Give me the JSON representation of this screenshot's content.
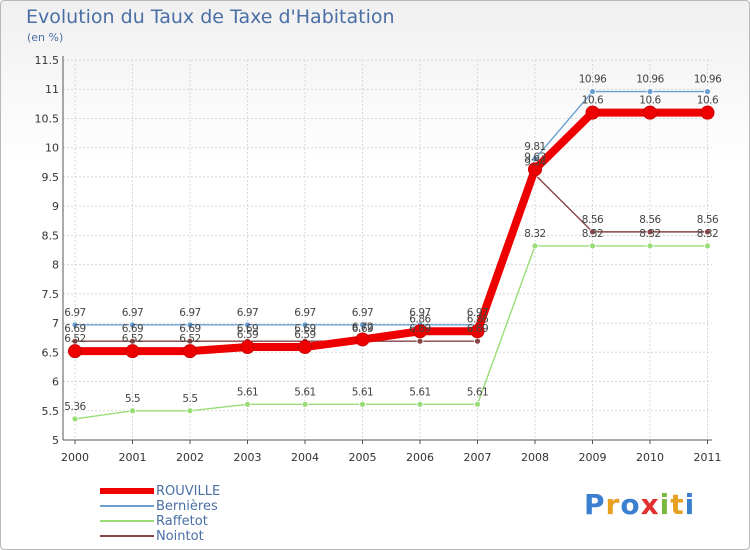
{
  "chart_data": {
    "type": "line",
    "title": "Evolution du Taux de Taxe d'Habitation",
    "subtitle": "(en %)",
    "x": [
      "2000",
      "2001",
      "2002",
      "2003",
      "2004",
      "2005",
      "2006",
      "2007",
      "2008",
      "2009",
      "2010",
      "2011"
    ],
    "ylim": [
      5,
      11.5
    ],
    "yticks": [
      "5",
      "5.5",
      "6",
      "6.5",
      "7",
      "7.5",
      "8",
      "8.5",
      "9",
      "9.5",
      "10",
      "10.5",
      "11",
      "11.5"
    ],
    "grid": true,
    "legend_position": "bottom-left",
    "series": [
      {
        "name": "ROUVILLE",
        "color": "#ee0000",
        "values": [
          6.52,
          6.52,
          6.52,
          6.59,
          6.59,
          6.72,
          6.86,
          6.86,
          9.63,
          10.6,
          10.6,
          10.6
        ],
        "labels": [
          "6.52",
          "6.52",
          "6.52",
          "6.59",
          "6.59",
          "6.72",
          "6.86",
          "6.86",
          "9.63",
          "10.6",
          "10.6",
          "10.6"
        ]
      },
      {
        "name": "Bernières",
        "color": "#6a9fd4",
        "values": [
          6.97,
          6.97,
          6.97,
          6.97,
          6.97,
          6.97,
          6.97,
          6.97,
          9.81,
          10.96,
          10.96,
          10.96
        ],
        "labels": [
          "6.97",
          "6.97",
          "6.97",
          "6.97",
          "6.97",
          "6.97",
          "6.97",
          "6.97",
          "9.81",
          "10.96",
          "10.96",
          "10.96"
        ]
      },
      {
        "name": "Raffetot",
        "color": "#99dd77",
        "values": [
          5.36,
          5.5,
          5.5,
          5.61,
          5.61,
          5.61,
          5.61,
          5.61,
          8.32,
          8.32,
          8.32,
          8.32
        ],
        "labels": [
          "5.36",
          "5.5",
          "5.5",
          "5.61",
          "5.61",
          "5.61",
          "5.61",
          "5.61",
          "8.32",
          "8.32",
          "8.32",
          "8.32"
        ]
      },
      {
        "name": "Nointot",
        "color": "#884444",
        "values": [
          6.69,
          6.69,
          6.69,
          6.69,
          6.69,
          6.69,
          6.69,
          6.69,
          9.54,
          8.56,
          8.56,
          8.56
        ],
        "labels": [
          "6.69",
          "6.69",
          "6.69",
          "6.69",
          "6.69",
          "6.69",
          "6.69",
          "6.69",
          "9.54",
          "8.56",
          "8.56",
          "8.56"
        ]
      }
    ]
  },
  "legend": {
    "items": [
      "ROUVILLE",
      "Bernières",
      "Raffetot",
      "Nointot"
    ]
  },
  "logo": {
    "text": "Proxiti",
    "letters": [
      "P",
      "r",
      "o",
      "x",
      "i",
      "t",
      "i"
    ]
  }
}
